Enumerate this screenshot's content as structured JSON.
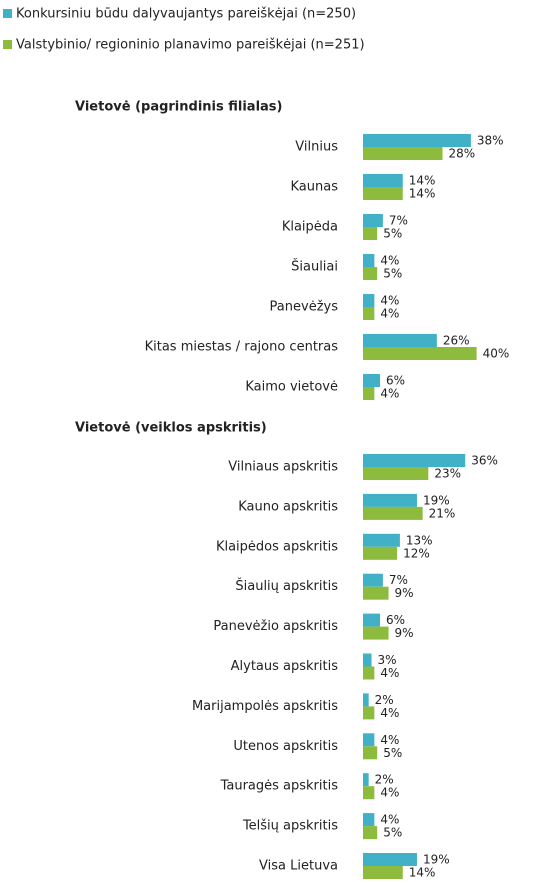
{
  "chart_data": [
    {
      "type": "bar",
      "orientation": "horizontal",
      "title": "Vietovė (pagrindinis filialas)",
      "categories": [
        "Vilnius",
        "Kaunas",
        "Klaipėda",
        "Šiauliai",
        "Panevėžys",
        "Kitas miestas / rajono centras",
        "Kaimo vietovė"
      ],
      "series": [
        {
          "name": "Konkursiniu būdu dalyvaujantys pareiškėjai (n=250)",
          "color": "#41b1c8",
          "values": [
            38,
            14,
            7,
            4,
            4,
            26,
            6
          ],
          "value_labels": [
            "38%",
            "14%",
            "7%",
            "4%",
            "4%",
            "26%",
            "6%"
          ]
        },
        {
          "name": "Valstybinio/ regioninio planavimo pareiškėjai (n=251)",
          "color": "#8dbb3d",
          "values": [
            28,
            14,
            5,
            5,
            4,
            40,
            4
          ],
          "value_labels": [
            "28%",
            "14%",
            "5%",
            "5%",
            "4%",
            "40%",
            "4%"
          ]
        }
      ]
    },
    {
      "type": "bar",
      "orientation": "horizontal",
      "title": "Vietovė (veiklos apskritis)",
      "categories": [
        "Vilniaus apskritis",
        "Kauno apskritis",
        "Klaipėdos apskritis",
        "Šiaulių apskritis",
        "Panevėžio apskritis",
        "Alytaus apskritis",
        "Marijampolės apskritis",
        "Utenos apskritis",
        "Tauragės apskritis",
        "Telšių apskritis",
        "Visa Lietuva"
      ],
      "series": [
        {
          "color": "#41b1c8",
          "values": [
            36,
            19,
            13,
            7,
            6,
            3,
            2,
            4,
            2,
            4,
            19
          ],
          "value_labels": [
            "36%",
            "19%",
            "13%",
            "7%",
            "6%",
            "3%",
            "2%",
            "4%",
            "2%",
            "4%",
            "19%"
          ]
        },
        {
          "color": "#8dbb3d",
          "values": [
            23,
            21,
            12,
            9,
            9,
            4,
            4,
            5,
            4,
            5,
            14
          ],
          "value_labels": [
            "23%",
            "21%",
            "12%",
            "9%",
            "9%",
            "4%",
            "4%",
            "5%",
            "4%",
            "5%",
            "14%"
          ]
        }
      ]
    }
  ]
}
